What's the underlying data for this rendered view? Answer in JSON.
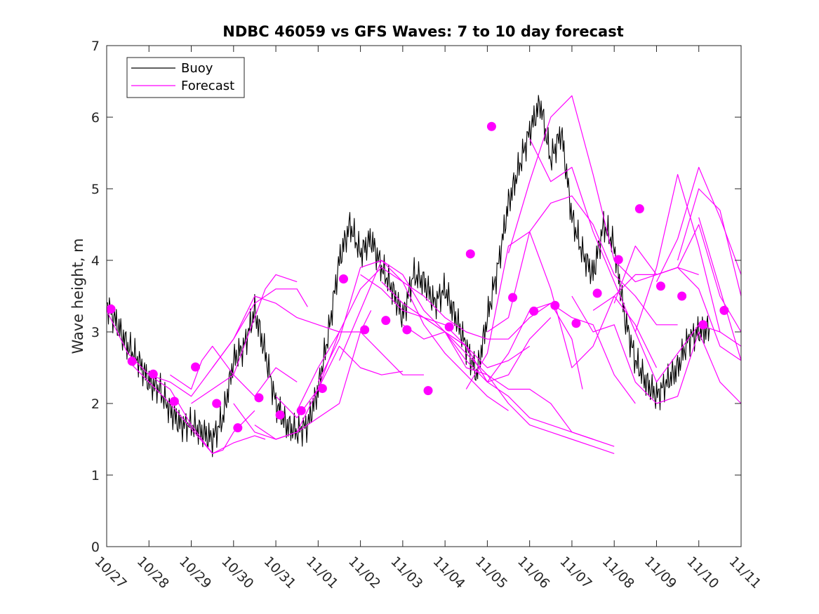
{
  "chart_data": {
    "type": "line",
    "title": "NDBC 46059 vs GFS Waves: 7 to 10 day forecast",
    "xlabel": "",
    "ylabel": "Wave height, m",
    "xlim": [
      0,
      15
    ],
    "ylim": [
      0,
      7
    ],
    "x_ticks": [
      0,
      1,
      2,
      3,
      4,
      5,
      6,
      7,
      8,
      9,
      10,
      11,
      12,
      13,
      14,
      15
    ],
    "x_tick_labels": [
      "10/27",
      "10/28",
      "10/29",
      "10/30",
      "10/31",
      "11/01",
      "11/02",
      "11/03",
      "11/04",
      "11/05",
      "11/06",
      "11/07",
      "11/08",
      "11/09",
      "11/10",
      "11/11"
    ],
    "y_ticks": [
      0,
      1,
      2,
      3,
      4,
      5,
      6,
      7
    ],
    "y_tick_labels": [
      "0",
      "1",
      "2",
      "3",
      "4",
      "5",
      "6",
      "7"
    ],
    "legend": {
      "placement": "top-left",
      "entries": [
        {
          "label": "Buoy",
          "color": "#000000"
        },
        {
          "label": "Forecast",
          "color": "#ff00ff"
        }
      ]
    },
    "colors": {
      "buoy": "#000000",
      "forecast": "#ff00ff",
      "axis": "#262626"
    },
    "series": [
      {
        "name": "Buoy",
        "x": [
          0,
          0.25,
          0.5,
          0.75,
          1,
          1.25,
          1.5,
          1.75,
          2,
          2.25,
          2.5,
          2.75,
          3,
          3.25,
          3.5,
          3.75,
          4,
          4.25,
          4.5,
          4.75,
          5,
          5.25,
          5.5,
          5.75,
          6,
          6.25,
          6.5,
          6.75,
          7,
          7.25,
          7.5,
          7.75,
          8,
          8.25,
          8.5,
          8.75,
          9,
          9.25,
          9.5,
          9.75,
          10,
          10.25,
          10.5,
          10.75,
          11,
          11.25,
          11.5,
          11.75,
          12,
          12.25,
          12.5,
          12.75,
          13,
          13.25,
          13.5,
          13.75,
          14,
          14.25
        ],
        "values": [
          3.4,
          3.1,
          2.8,
          2.6,
          2.3,
          2.2,
          1.9,
          1.7,
          1.7,
          1.6,
          1.5,
          1.8,
          2.6,
          2.8,
          3.3,
          2.7,
          2.0,
          1.7,
          1.6,
          1.7,
          2.2,
          3.0,
          4.0,
          4.5,
          4.1,
          4.3,
          3.9,
          3.6,
          3.2,
          3.8,
          3.7,
          3.4,
          3.6,
          3.2,
          2.8,
          2.4,
          3.2,
          3.9,
          4.8,
          5.3,
          5.8,
          6.2,
          5.4,
          5.8,
          4.6,
          4.1,
          3.8,
          4.5,
          4.2,
          3.2,
          2.6,
          2.3,
          2.1,
          2.3,
          2.5,
          2.9,
          3.0,
          3.05
        ]
      },
      {
        "name": "Forecast",
        "x": [
          0,
          0.5,
          1,
          1.5,
          2,
          2.5,
          2.75,
          3,
          3.5
        ],
        "values": [
          3.3,
          2.7,
          2.4,
          2.2,
          1.7,
          1.3,
          1.35,
          1.6,
          1.9
        ]
      },
      {
        "name": "Forecast",
        "x": [
          0.5,
          1,
          1.5,
          2,
          2.5,
          3,
          3.5,
          3.75
        ],
        "values": [
          2.6,
          2.3,
          2.0,
          1.65,
          1.3,
          1.45,
          1.55,
          1.5
        ]
      },
      {
        "name": "Forecast",
        "x": [
          1,
          1.5,
          2,
          2.5,
          3,
          3.5,
          4,
          4.5,
          4.75
        ],
        "values": [
          2.4,
          2.3,
          2.1,
          2.5,
          2.9,
          3.4,
          3.6,
          3.6,
          3.35
        ]
      },
      {
        "name": "Forecast",
        "x": [
          1.5,
          2,
          2.25,
          2.5,
          3,
          3.5,
          4,
          4.5
        ],
        "values": [
          2.4,
          2.2,
          2.6,
          2.8,
          2.4,
          2.1,
          2.5,
          2.3
        ]
      },
      {
        "name": "Forecast",
        "x": [
          2,
          2.5,
          3,
          3.5,
          3.75,
          4,
          4.5
        ],
        "values": [
          2.0,
          2.2,
          2.4,
          3.2,
          3.6,
          3.8,
          3.7
        ]
      },
      {
        "name": "Forecast",
        "x": [
          2.5,
          3,
          3.5,
          4,
          4.5,
          5,
          5.5
        ],
        "values": [
          2.5,
          2.9,
          3.5,
          3.4,
          3.2,
          3.1,
          3.0
        ]
      },
      {
        "name": "Forecast",
        "x": [
          3,
          3.5,
          4,
          4.5,
          5,
          5.5,
          6,
          6.25
        ],
        "values": [
          2.0,
          1.6,
          1.5,
          1.6,
          1.8,
          2.0,
          3.0,
          3.3
        ]
      },
      {
        "name": "Forecast",
        "x": [
          3.5,
          4,
          4.5,
          5,
          5.5,
          6,
          6.5,
          7
        ],
        "values": [
          1.7,
          1.5,
          1.6,
          2.2,
          2.8,
          2.5,
          2.4,
          2.45
        ]
      },
      {
        "name": "Forecast",
        "x": [
          4,
          4.5,
          5,
          5.5,
          6,
          6.5,
          7,
          7.5
        ],
        "values": [
          2.1,
          1.8,
          2.2,
          3.0,
          3.0,
          2.7,
          2.4,
          2.4
        ]
      },
      {
        "name": "Forecast",
        "x": [
          4.5,
          5,
          5.5,
          6,
          6.5,
          7,
          7.5,
          8,
          8.5,
          9,
          9.5,
          10,
          10.5,
          11,
          11.25
        ],
        "values": [
          1.9,
          2.5,
          3.0,
          3.6,
          3.9,
          3.7,
          3.5,
          3.2,
          3.0,
          2.9,
          2.9,
          3.2,
          3.4,
          2.9,
          2.2
        ]
      },
      {
        "name": "Forecast",
        "x": [
          5,
          5.5,
          6,
          6.5,
          7,
          7.5,
          8,
          8.5,
          9,
          9.5
        ],
        "values": [
          2.3,
          2.9,
          3.9,
          4.0,
          3.7,
          3.1,
          2.7,
          2.4,
          2.1,
          1.9
        ]
      },
      {
        "name": "Forecast",
        "x": [
          5.5,
          6,
          6.5,
          7,
          7.5,
          8,
          8.5,
          9,
          9.5,
          10,
          10.5,
          11,
          11.5,
          12
        ],
        "values": [
          2.6,
          3.3,
          4.0,
          3.8,
          3.3,
          3.0,
          2.5,
          2.4,
          2.0,
          1.7,
          1.6,
          1.5,
          1.4,
          1.3
        ]
      },
      {
        "name": "Forecast",
        "x": [
          6,
          6.5,
          7,
          7.5,
          8,
          8.5,
          9,
          9.5,
          10
        ],
        "values": [
          3.8,
          3.6,
          3.3,
          3.2,
          3.1,
          2.8,
          2.5,
          2.6,
          2.8
        ]
      },
      {
        "name": "Forecast",
        "x": [
          6.5,
          7,
          7.5,
          8,
          8.5,
          9,
          9.5,
          10,
          10.5
        ],
        "values": [
          3.7,
          3.4,
          3.2,
          3.0,
          2.6,
          2.3,
          2.4,
          2.9,
          3.2
        ]
      },
      {
        "name": "Forecast",
        "x": [
          7,
          7.5,
          8,
          8.5,
          9,
          9.5,
          10,
          10.5,
          11,
          11.5
        ],
        "values": [
          3.1,
          2.9,
          3.0,
          2.7,
          2.4,
          2.2,
          2.2,
          2.0,
          1.6,
          1.5
        ]
      },
      {
        "name": "Forecast",
        "x": [
          7.5,
          8,
          8.5,
          9,
          9.5,
          10,
          10.5,
          11,
          11.5,
          12
        ],
        "values": [
          3.2,
          3.0,
          2.8,
          2.3,
          2.1,
          1.8,
          1.7,
          1.6,
          1.5,
          1.4
        ]
      },
      {
        "name": "Forecast",
        "x": [
          8,
          8.5,
          9,
          9.5,
          10,
          10.5,
          11,
          11.5,
          12,
          12.5
        ],
        "values": [
          3.0,
          2.8,
          2.3,
          2.7,
          3.3,
          3.4,
          3.2,
          3.1,
          2.4,
          2.0
        ]
      },
      {
        "name": "Forecast",
        "x": [
          8.5,
          9,
          9.5,
          10,
          10.5,
          11,
          11.5,
          12,
          12.5,
          13
        ],
        "values": [
          2.2,
          2.7,
          4.2,
          4.4,
          3.6,
          2.5,
          2.8,
          3.5,
          3.1,
          2.5
        ]
      },
      {
        "name": "Forecast",
        "x": [
          9,
          9.5,
          10,
          10.5,
          11,
          11.5,
          12,
          12.5,
          13,
          13.5
        ],
        "values": [
          3.0,
          3.2,
          4.4,
          4.8,
          4.9,
          4.5,
          3.8,
          3.5,
          3.1,
          3.1
        ]
      },
      {
        "name": "Forecast",
        "x": [
          9.5,
          10,
          10.5,
          11,
          11.5,
          12,
          12.5,
          13,
          13.5,
          14
        ],
        "values": [
          4.1,
          5.1,
          6.0,
          6.3,
          5.2,
          4.0,
          3.7,
          3.8,
          3.9,
          3.8
        ]
      },
      {
        "name": "Forecast",
        "x": [
          10,
          10.5,
          11,
          11.5,
          12,
          12.5,
          13,
          13.5,
          14,
          14.5
        ],
        "values": [
          5.7,
          5.1,
          5.3,
          4.4,
          3.7,
          3.0,
          2.3,
          2.7,
          3.1,
          3.0
        ]
      },
      {
        "name": "Forecast",
        "x": [
          11,
          11.5,
          12,
          12.5,
          13,
          13.5,
          14,
          14.5,
          15
        ],
        "values": [
          3.5,
          3.0,
          3.1,
          2.3,
          2.0,
          2.1,
          3.0,
          2.3,
          2.0
        ]
      },
      {
        "name": "Forecast",
        "x": [
          11.5,
          12,
          12.5,
          13,
          13.5,
          14,
          14.5,
          15
        ],
        "values": [
          3.3,
          3.5,
          3.8,
          3.8,
          3.9,
          3.6,
          2.8,
          2.6
        ]
      },
      {
        "name": "Forecast",
        "x": [
          12,
          12.5,
          13,
          13.5,
          14,
          14.5,
          15
        ],
        "values": [
          3.4,
          4.2,
          3.8,
          3.9,
          4.5,
          3.5,
          3.0
        ]
      },
      {
        "name": "Forecast",
        "x": [
          12.5,
          13,
          13.5,
          14,
          14.5,
          15
        ],
        "values": [
          3.0,
          3.9,
          5.2,
          4.2,
          3.0,
          2.8
        ]
      },
      {
        "name": "Forecast",
        "x": [
          13,
          13.5,
          14,
          14.5,
          15
        ],
        "values": [
          3.7,
          4.3,
          5.3,
          4.6,
          3.8
        ]
      },
      {
        "name": "Forecast",
        "x": [
          13.5,
          14,
          14.5,
          15
        ],
        "values": [
          4.0,
          5.0,
          4.7,
          3.5
        ]
      },
      {
        "name": "Forecast",
        "x": [
          14,
          14.5,
          15
        ],
        "values": [
          4.6,
          3.6,
          2.6
        ]
      }
    ],
    "forecast_markers": {
      "x": [
        0.1,
        0.6,
        1.1,
        1.6,
        2.1,
        2.6,
        3.1,
        3.6,
        4.1,
        4.6,
        5.1,
        5.6,
        6.1,
        6.6,
        7.1,
        7.6,
        8.1,
        8.6,
        9.1,
        9.6,
        10.1,
        10.6,
        11.1,
        11.6,
        12.1,
        12.6,
        13.1,
        13.6,
        14.1,
        14.6
      ],
      "values": [
        3.32,
        2.59,
        2.41,
        2.03,
        2.51,
        2.0,
        1.66,
        2.08,
        1.84,
        1.9,
        2.21,
        3.74,
        3.03,
        3.16,
        3.03,
        2.18,
        3.07,
        4.09,
        5.87,
        3.48,
        3.29,
        3.37,
        3.12,
        3.54,
        4.01,
        4.72,
        3.64,
        3.5,
        3.1,
        3.3
      ]
    }
  }
}
